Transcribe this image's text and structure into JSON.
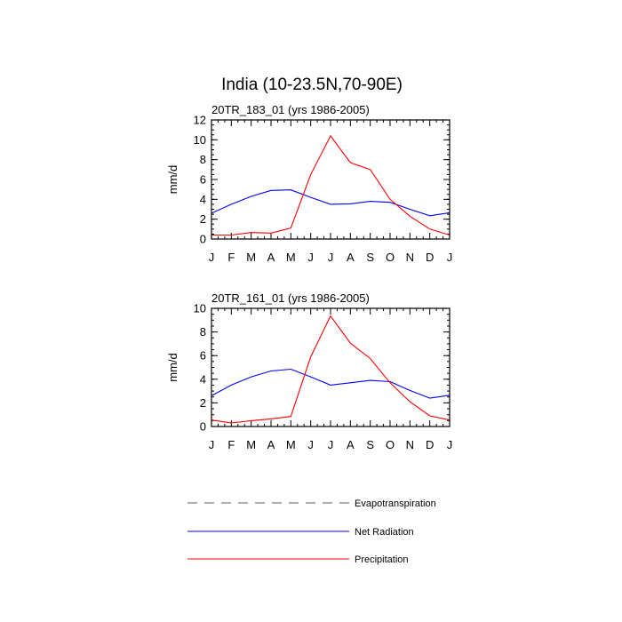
{
  "title": "India (10-23.5N,70-90E)",
  "colors": {
    "evapotranspiration": "#808080",
    "net_radiation": "#0000ff",
    "precipitation": "#ff0000"
  },
  "legend": [
    {
      "key": "evapotranspiration",
      "label": "Evapotranspiration",
      "style": "dashed"
    },
    {
      "key": "net_radiation",
      "label": "Net Radiation",
      "style": "solid"
    },
    {
      "key": "precipitation",
      "label": "Precipitation",
      "style": "solid"
    }
  ],
  "chart_data": [
    {
      "type": "line",
      "title": "20TR_183_01 (yrs 1986-2005)",
      "xlabel": "",
      "ylabel": "mm/d",
      "categories": [
        "J",
        "F",
        "M",
        "A",
        "M",
        "J",
        "J",
        "A",
        "S",
        "O",
        "N",
        "D",
        "J"
      ],
      "ylim": [
        0,
        12
      ],
      "yticks": [
        0,
        2,
        4,
        6,
        8,
        10,
        12
      ],
      "series": [
        {
          "name": "Net Radiation",
          "key": "net_radiation",
          "values": [
            2.6,
            3.5,
            4.3,
            4.9,
            4.95,
            4.2,
            3.5,
            3.55,
            3.8,
            3.7,
            3.0,
            2.35,
            2.65
          ]
        },
        {
          "name": "Precipitation",
          "key": "precipitation",
          "values": [
            0.4,
            0.4,
            0.65,
            0.6,
            1.1,
            6.5,
            10.4,
            7.7,
            7.0,
            4.0,
            2.3,
            1.0,
            0.4
          ]
        }
      ]
    },
    {
      "type": "line",
      "title": "20TR_161_01 (yrs 1986-2005)",
      "xlabel": "",
      "ylabel": "mm/d",
      "categories": [
        "J",
        "F",
        "M",
        "A",
        "M",
        "J",
        "J",
        "A",
        "S",
        "O",
        "N",
        "D",
        "J"
      ],
      "ylim": [
        0,
        10
      ],
      "yticks": [
        0,
        2,
        4,
        6,
        8,
        10
      ],
      "series": [
        {
          "name": "Net Radiation",
          "key": "net_radiation",
          "values": [
            2.6,
            3.5,
            4.2,
            4.7,
            4.85,
            4.2,
            3.5,
            3.7,
            3.9,
            3.8,
            3.05,
            2.4,
            2.65
          ]
        },
        {
          "name": "Precipitation",
          "key": "precipitation",
          "values": [
            0.55,
            0.3,
            0.5,
            0.65,
            0.85,
            5.9,
            9.35,
            7.05,
            5.75,
            3.7,
            2.1,
            0.9,
            0.55
          ]
        }
      ]
    }
  ]
}
